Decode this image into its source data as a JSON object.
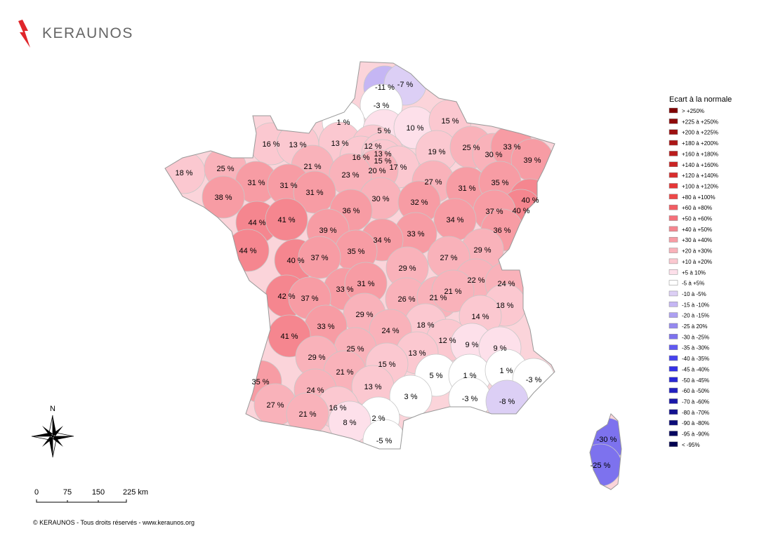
{
  "header": {
    "logo_text": "KERAUNOS"
  },
  "map": {
    "departments": [
      {
        "label": "-11 %",
        "color": "#c5b6f4"
      },
      {
        "label": "-7 %",
        "color": "#dccff5"
      },
      {
        "label": "-3 %",
        "color": "#ffffff"
      },
      {
        "label": "1 %",
        "color": "#ffffff"
      },
      {
        "label": "5 %",
        "color": "#fde0ea"
      },
      {
        "label": "10 %",
        "color": "#fde0ea"
      },
      {
        "label": "15 %",
        "color": "#fbc8d0"
      },
      {
        "label": "16 %",
        "color": "#fbc8d0"
      },
      {
        "label": "13 %",
        "color": "#fbc8d0"
      },
      {
        "label": "13 %",
        "color": "#fbc8d0"
      },
      {
        "label": "12 %",
        "color": "#fbc8d0"
      },
      {
        "label": "16 %",
        "color": "#fbc8d0"
      },
      {
        "label": "13 %",
        "color": "#fbc8d0"
      },
      {
        "label": "15 %",
        "color": "#fbc8d0"
      },
      {
        "label": "17 %",
        "color": "#fbc8d0"
      },
      {
        "label": "20 %",
        "color": "#f9b2ba"
      },
      {
        "label": "19 %",
        "color": "#fbc8d0"
      },
      {
        "label": "25 %",
        "color": "#f9b2ba"
      },
      {
        "label": "30 %",
        "color": "#f9b2ba"
      },
      {
        "label": "33 %",
        "color": "#f79ca4"
      },
      {
        "label": "39 %",
        "color": "#f79ca4"
      },
      {
        "label": "18 %",
        "color": "#fbc8d0"
      },
      {
        "label": "25 %",
        "color": "#f9b2ba"
      },
      {
        "label": "21 %",
        "color": "#f9b2ba"
      },
      {
        "label": "23 %",
        "color": "#f9b2ba"
      },
      {
        "label": "31 %",
        "color": "#f79ca4"
      },
      {
        "label": "31 %",
        "color": "#f79ca4"
      },
      {
        "label": "31 %",
        "color": "#f79ca4"
      },
      {
        "label": "27 %",
        "color": "#f9b2ba"
      },
      {
        "label": "31 %",
        "color": "#f79ca4"
      },
      {
        "label": "35 %",
        "color": "#f79ca4"
      },
      {
        "label": "40 %",
        "color": "#f5868f"
      },
      {
        "label": "40 %",
        "color": "#f5868f"
      },
      {
        "label": "37 %",
        "color": "#f79ca4"
      },
      {
        "label": "38 %",
        "color": "#f79ca4"
      },
      {
        "label": "30 %",
        "color": "#f9b2ba"
      },
      {
        "label": "32 %",
        "color": "#f79ca4"
      },
      {
        "label": "34 %",
        "color": "#f79ca4"
      },
      {
        "label": "36 %",
        "color": "#f79ca4"
      },
      {
        "label": "44 %",
        "color": "#f5868f"
      },
      {
        "label": "41 %",
        "color": "#f5868f"
      },
      {
        "label": "39 %",
        "color": "#f79ca4"
      },
      {
        "label": "33 %",
        "color": "#f79ca4"
      },
      {
        "label": "34 %",
        "color": "#f79ca4"
      },
      {
        "label": "36 %",
        "color": "#f79ca4"
      },
      {
        "label": "35 %",
        "color": "#f79ca4"
      },
      {
        "label": "29 %",
        "color": "#f9b2ba"
      },
      {
        "label": "44 %",
        "color": "#f5868f"
      },
      {
        "label": "40 %",
        "color": "#f5868f"
      },
      {
        "label": "37 %",
        "color": "#f79ca4"
      },
      {
        "label": "27 %",
        "color": "#f9b2ba"
      },
      {
        "label": "29 %",
        "color": "#f9b2ba"
      },
      {
        "label": "22 %",
        "color": "#f9b2ba"
      },
      {
        "label": "24 %",
        "color": "#f9b2ba"
      },
      {
        "label": "33 %",
        "color": "#f79ca4"
      },
      {
        "label": "31 %",
        "color": "#f79ca4"
      },
      {
        "label": "42 %",
        "color": "#f5868f"
      },
      {
        "label": "37 %",
        "color": "#f79ca4"
      },
      {
        "label": "26 %",
        "color": "#f9b2ba"
      },
      {
        "label": "21 %",
        "color": "#f9b2ba"
      },
      {
        "label": "21 %",
        "color": "#f9b2ba"
      },
      {
        "label": "18 %",
        "color": "#fbc8d0"
      },
      {
        "label": "14 %",
        "color": "#fbc8d0"
      },
      {
        "label": "29 %",
        "color": "#f9b2ba"
      },
      {
        "label": "18 %",
        "color": "#fbc8d0"
      },
      {
        "label": "24 %",
        "color": "#f9b2ba"
      },
      {
        "label": "33 %",
        "color": "#f79ca4"
      },
      {
        "label": "41 %",
        "color": "#f5868f"
      },
      {
        "label": "12 %",
        "color": "#fbc8d0"
      },
      {
        "label": "9 %",
        "color": "#fde0ea"
      },
      {
        "label": "9 %",
        "color": "#fde0ea"
      },
      {
        "label": "25 %",
        "color": "#f9b2ba"
      },
      {
        "label": "29 %",
        "color": "#f9b2ba"
      },
      {
        "label": "13 %",
        "color": "#fbc8d0"
      },
      {
        "label": "15 %",
        "color": "#fbc8d0"
      },
      {
        "label": "21 %",
        "color": "#f9b2ba"
      },
      {
        "label": "5 %",
        "color": "#ffffff"
      },
      {
        "label": "1 %",
        "color": "#ffffff"
      },
      {
        "label": "1 %",
        "color": "#ffffff"
      },
      {
        "label": "-3 %",
        "color": "#ffffff"
      },
      {
        "label": "35 %",
        "color": "#f79ca4"
      },
      {
        "label": "24 %",
        "color": "#f9b2ba"
      },
      {
        "label": "13 %",
        "color": "#fbc8d0"
      },
      {
        "label": "3 %",
        "color": "#ffffff"
      },
      {
        "label": "-3 %",
        "color": "#ffffff"
      },
      {
        "label": "-8 %",
        "color": "#dccff5"
      },
      {
        "label": "27 %",
        "color": "#f9b2ba"
      },
      {
        "label": "16 %",
        "color": "#fbc8d0"
      },
      {
        "label": "21 %",
        "color": "#f9b2ba"
      },
      {
        "label": "2 %",
        "color": "#ffffff"
      },
      {
        "label": "8 %",
        "color": "#fde0ea"
      },
      {
        "label": "-5 %",
        "color": "#ffffff"
      },
      {
        "label": "-30 %",
        "color": "#7d72ee"
      },
      {
        "label": "-25 %",
        "color": "#7d72ee"
      }
    ]
  },
  "legend": {
    "title": "Ecart à la normale",
    "classes": [
      {
        "label": "> +250%",
        "color": "#7f0000"
      },
      {
        "label": "+225 à +250%",
        "color": "#8e0a0a"
      },
      {
        "label": "+200 à +225%",
        "color": "#9d1010"
      },
      {
        "label": "+180 à +200%",
        "color": "#ac1616"
      },
      {
        "label": "+160 à +180%",
        "color": "#bb1c1c"
      },
      {
        "label": "+140 à +160%",
        "color": "#ca2424"
      },
      {
        "label": "+120 à +140%",
        "color": "#d92c2c"
      },
      {
        "label": "+100 à +120%",
        "color": "#e63636"
      },
      {
        "label": "+80 à +100%",
        "color": "#ee4848"
      },
      {
        "label": "+60 à +80%",
        "color": "#f25c63"
      },
      {
        "label": "+50 à +60%",
        "color": "#f4707a"
      },
      {
        "label": "+40 à +50%",
        "color": "#f5868f"
      },
      {
        "label": "+30 à +40%",
        "color": "#f79ca4"
      },
      {
        "label": "+20 à +30%",
        "color": "#f9b2ba"
      },
      {
        "label": "+10 à +20%",
        "color": "#fbc8d0"
      },
      {
        "label": "+5 à 10%",
        "color": "#fde0ea"
      },
      {
        "label": "-5 à +5%",
        "color": "#ffffff"
      },
      {
        "label": "-10 à -5%",
        "color": "#dccff5"
      },
      {
        "label": "-15 à -10%",
        "color": "#c5b6f4"
      },
      {
        "label": "-20 à -15%",
        "color": "#ada0f2"
      },
      {
        "label": "-25 à 20%",
        "color": "#9589f0"
      },
      {
        "label": "-30 à -25%",
        "color": "#7d72ee"
      },
      {
        "label": "-35 à -30%",
        "color": "#6059f0"
      },
      {
        "label": "-40 à -35%",
        "color": "#4642ee"
      },
      {
        "label": "-45 à -40%",
        "color": "#3430e6"
      },
      {
        "label": "-50 à -45%",
        "color": "#2a28d6"
      },
      {
        "label": "-60 à -50%",
        "color": "#2220c0"
      },
      {
        "label": "-70 à -60%",
        "color": "#1a18a8"
      },
      {
        "label": "-80 à -70%",
        "color": "#131290"
      },
      {
        "label": "-90 à -80%",
        "color": "#0c0c78"
      },
      {
        "label": "-95 à -90%",
        "color": "#060660"
      },
      {
        "label": "< -95%",
        "color": "#000050"
      }
    ]
  },
  "compass": {
    "label": "N"
  },
  "scale_bar": {
    "labels": [
      "0",
      "75",
      "150",
      "225 km"
    ]
  },
  "footer": {
    "text": "© KERAUNOS - Tous droits réservés - www.keraunos.org"
  }
}
